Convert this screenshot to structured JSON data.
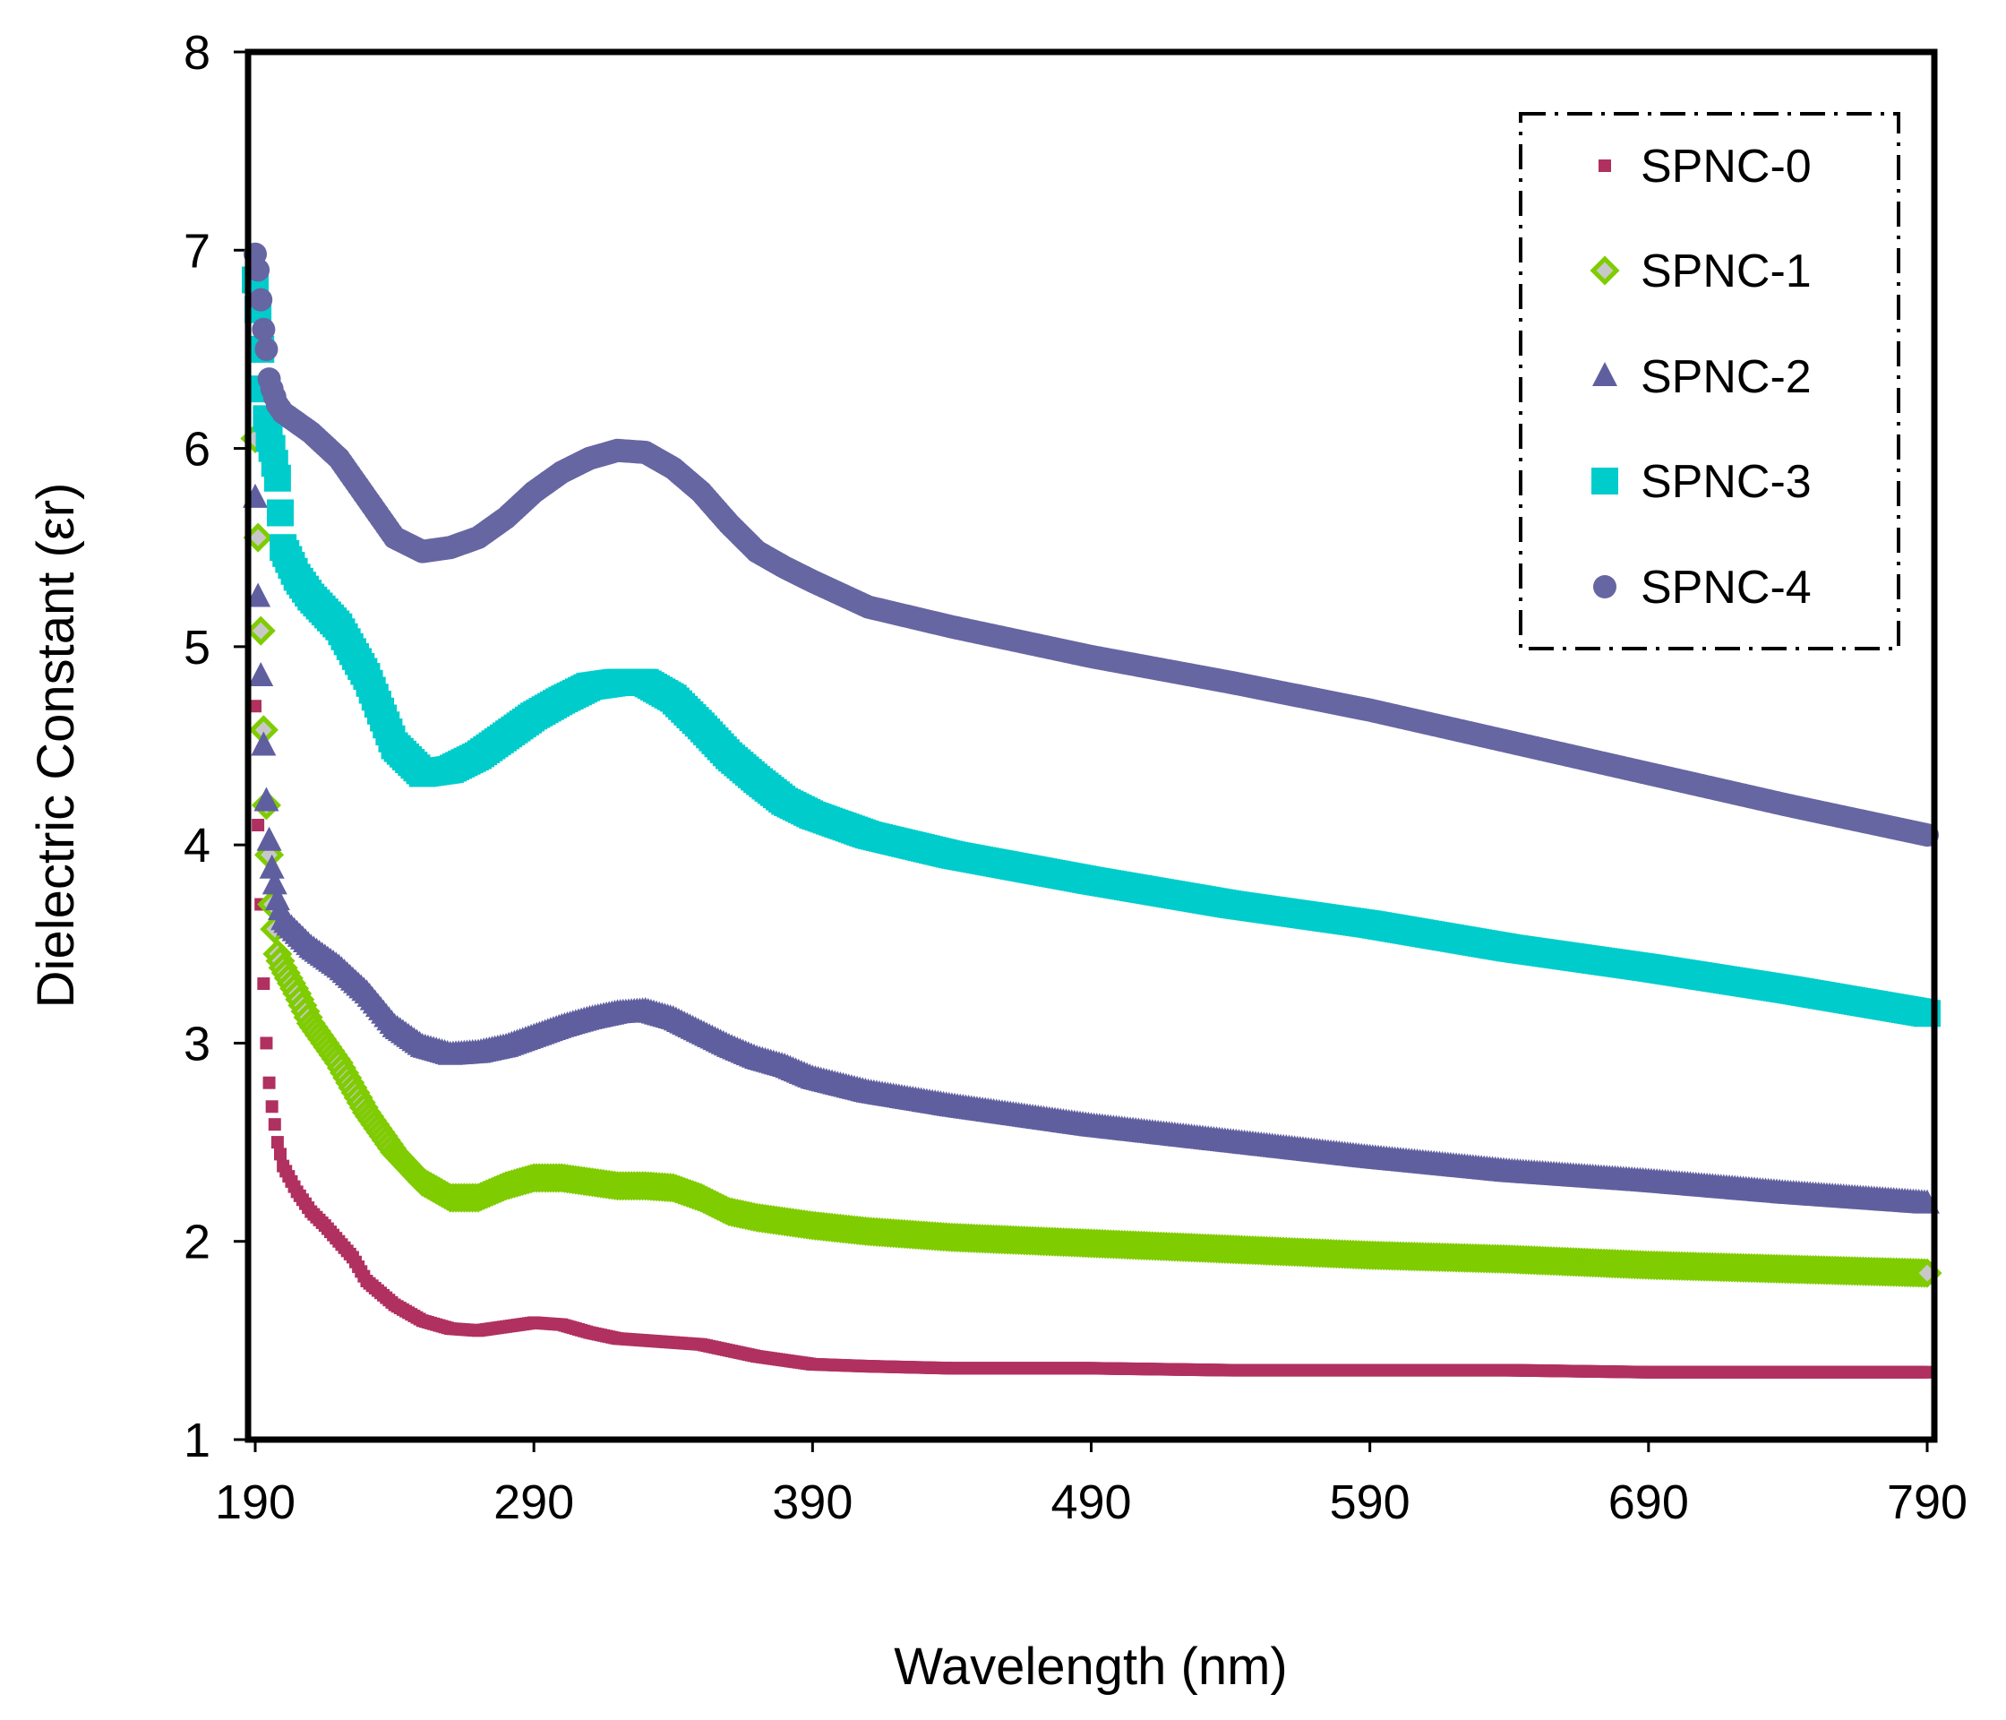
{
  "chart_data": {
    "type": "scatter",
    "xlabel": "Wavelength (nm)",
    "ylabel": "Dielectric Constant (εr)",
    "xlim": [
      190,
      790
    ],
    "ylim": [
      1,
      8
    ],
    "x_ticks": [
      "190",
      "290",
      "390",
      "490",
      "590",
      "690",
      "790"
    ],
    "y_ticks": [
      "1",
      "2",
      "3",
      "4",
      "5",
      "6",
      "7",
      "8"
    ],
    "grid": false,
    "legend_position": "top-right",
    "series": [
      {
        "name": "SPNC-0",
        "marker": "square-small",
        "color": "#b03060",
        "points": [
          [
            190,
            4.7
          ],
          [
            191,
            4.1
          ],
          [
            192,
            3.7
          ],
          [
            193,
            3.3
          ],
          [
            194,
            3.0
          ],
          [
            195,
            2.8
          ],
          [
            196,
            2.68
          ],
          [
            198,
            2.5
          ],
          [
            200,
            2.38
          ],
          [
            205,
            2.25
          ],
          [
            210,
            2.15
          ],
          [
            215,
            2.08
          ],
          [
            220,
            2.0
          ],
          [
            225,
            1.92
          ],
          [
            230,
            1.8
          ],
          [
            240,
            1.68
          ],
          [
            250,
            1.6
          ],
          [
            260,
            1.56
          ],
          [
            270,
            1.55
          ],
          [
            280,
            1.57
          ],
          [
            290,
            1.59
          ],
          [
            300,
            1.58
          ],
          [
            310,
            1.54
          ],
          [
            320,
            1.51
          ],
          [
            330,
            1.5
          ],
          [
            340,
            1.49
          ],
          [
            350,
            1.48
          ],
          [
            360,
            1.45
          ],
          [
            370,
            1.42
          ],
          [
            380,
            1.4
          ],
          [
            390,
            1.38
          ],
          [
            410,
            1.37
          ],
          [
            440,
            1.36
          ],
          [
            490,
            1.36
          ],
          [
            540,
            1.35
          ],
          [
            590,
            1.35
          ],
          [
            640,
            1.35
          ],
          [
            690,
            1.34
          ],
          [
            740,
            1.34
          ],
          [
            790,
            1.34
          ]
        ]
      },
      {
        "name": "SPNC-1",
        "marker": "diamond",
        "color": "#7fcc00",
        "points": [
          [
            190,
            6.05
          ],
          [
            191,
            5.55
          ],
          [
            192,
            5.08
          ],
          [
            193,
            4.58
          ],
          [
            194,
            4.2
          ],
          [
            195,
            3.95
          ],
          [
            196,
            3.7
          ],
          [
            198,
            3.45
          ],
          [
            200,
            3.38
          ],
          [
            205,
            3.25
          ],
          [
            210,
            3.1
          ],
          [
            220,
            2.9
          ],
          [
            230,
            2.65
          ],
          [
            240,
            2.45
          ],
          [
            250,
            2.3
          ],
          [
            260,
            2.22
          ],
          [
            270,
            2.22
          ],
          [
            280,
            2.28
          ],
          [
            290,
            2.32
          ],
          [
            300,
            2.32
          ],
          [
            310,
            2.3
          ],
          [
            320,
            2.28
          ],
          [
            330,
            2.28
          ],
          [
            340,
            2.27
          ],
          [
            350,
            2.22
          ],
          [
            360,
            2.15
          ],
          [
            370,
            2.12
          ],
          [
            380,
            2.1
          ],
          [
            390,
            2.08
          ],
          [
            410,
            2.05
          ],
          [
            440,
            2.02
          ],
          [
            490,
            1.99
          ],
          [
            540,
            1.96
          ],
          [
            590,
            1.93
          ],
          [
            640,
            1.91
          ],
          [
            690,
            1.88
          ],
          [
            740,
            1.86
          ],
          [
            790,
            1.84
          ]
        ]
      },
      {
        "name": "SPNC-2",
        "marker": "triangle",
        "color": "#5f5fa0",
        "points": [
          [
            190,
            5.75
          ],
          [
            191,
            5.25
          ],
          [
            192,
            4.85
          ],
          [
            193,
            4.5
          ],
          [
            194,
            4.22
          ],
          [
            195,
            4.02
          ],
          [
            196,
            3.88
          ],
          [
            198,
            3.72
          ],
          [
            200,
            3.62
          ],
          [
            205,
            3.55
          ],
          [
            210,
            3.48
          ],
          [
            220,
            3.38
          ],
          [
            230,
            3.25
          ],
          [
            240,
            3.08
          ],
          [
            250,
            2.98
          ],
          [
            260,
            2.94
          ],
          [
            270,
            2.95
          ],
          [
            280,
            2.98
          ],
          [
            290,
            3.03
          ],
          [
            300,
            3.08
          ],
          [
            310,
            3.12
          ],
          [
            320,
            3.15
          ],
          [
            330,
            3.16
          ],
          [
            340,
            3.12
          ],
          [
            350,
            3.05
          ],
          [
            360,
            2.98
          ],
          [
            370,
            2.92
          ],
          [
            380,
            2.88
          ],
          [
            390,
            2.82
          ],
          [
            410,
            2.75
          ],
          [
            440,
            2.68
          ],
          [
            490,
            2.58
          ],
          [
            540,
            2.5
          ],
          [
            590,
            2.42
          ],
          [
            640,
            2.35
          ],
          [
            690,
            2.3
          ],
          [
            740,
            2.24
          ],
          [
            790,
            2.19
          ]
        ]
      },
      {
        "name": "SPNC-3",
        "marker": "square-large",
        "color": "#00cccc",
        "points": [
          [
            190,
            6.85
          ],
          [
            191,
            6.7
          ],
          [
            192,
            6.5
          ],
          [
            193,
            6.3
          ],
          [
            194,
            6.15
          ],
          [
            195,
            6.05
          ],
          [
            196,
            6.0
          ],
          [
            198,
            5.85
          ],
          [
            200,
            5.5
          ],
          [
            205,
            5.35
          ],
          [
            210,
            5.25
          ],
          [
            220,
            5.1
          ],
          [
            230,
            4.85
          ],
          [
            240,
            4.5
          ],
          [
            250,
            4.36
          ],
          [
            260,
            4.38
          ],
          [
            270,
            4.45
          ],
          [
            280,
            4.55
          ],
          [
            290,
            4.65
          ],
          [
            300,
            4.73
          ],
          [
            310,
            4.8
          ],
          [
            320,
            4.82
          ],
          [
            330,
            4.82
          ],
          [
            340,
            4.74
          ],
          [
            350,
            4.6
          ],
          [
            360,
            4.45
          ],
          [
            370,
            4.33
          ],
          [
            380,
            4.22
          ],
          [
            390,
            4.15
          ],
          [
            410,
            4.05
          ],
          [
            440,
            3.95
          ],
          [
            490,
            3.82
          ],
          [
            540,
            3.7
          ],
          [
            590,
            3.6
          ],
          [
            640,
            3.48
          ],
          [
            690,
            3.38
          ],
          [
            740,
            3.27
          ],
          [
            790,
            3.15
          ]
        ]
      },
      {
        "name": "SPNC-4",
        "marker": "circle",
        "color": "#6666a3",
        "points": [
          [
            190,
            6.98
          ],
          [
            191,
            6.9
          ],
          [
            192,
            6.75
          ],
          [
            193,
            6.6
          ],
          [
            194,
            6.5
          ],
          [
            195,
            6.35
          ],
          [
            196,
            6.3
          ],
          [
            198,
            6.22
          ],
          [
            200,
            6.18
          ],
          [
            210,
            6.08
          ],
          [
            220,
            5.95
          ],
          [
            230,
            5.75
          ],
          [
            240,
            5.55
          ],
          [
            250,
            5.48
          ],
          [
            260,
            5.5
          ],
          [
            270,
            5.55
          ],
          [
            280,
            5.65
          ],
          [
            290,
            5.78
          ],
          [
            300,
            5.88
          ],
          [
            310,
            5.95
          ],
          [
            320,
            5.99
          ],
          [
            330,
            5.98
          ],
          [
            340,
            5.9
          ],
          [
            350,
            5.78
          ],
          [
            360,
            5.62
          ],
          [
            370,
            5.48
          ],
          [
            380,
            5.4
          ],
          [
            390,
            5.33
          ],
          [
            410,
            5.2
          ],
          [
            440,
            5.1
          ],
          [
            490,
            4.95
          ],
          [
            540,
            4.82
          ],
          [
            590,
            4.68
          ],
          [
            640,
            4.52
          ],
          [
            690,
            4.36
          ],
          [
            740,
            4.2
          ],
          [
            790,
            4.05
          ]
        ]
      }
    ]
  }
}
